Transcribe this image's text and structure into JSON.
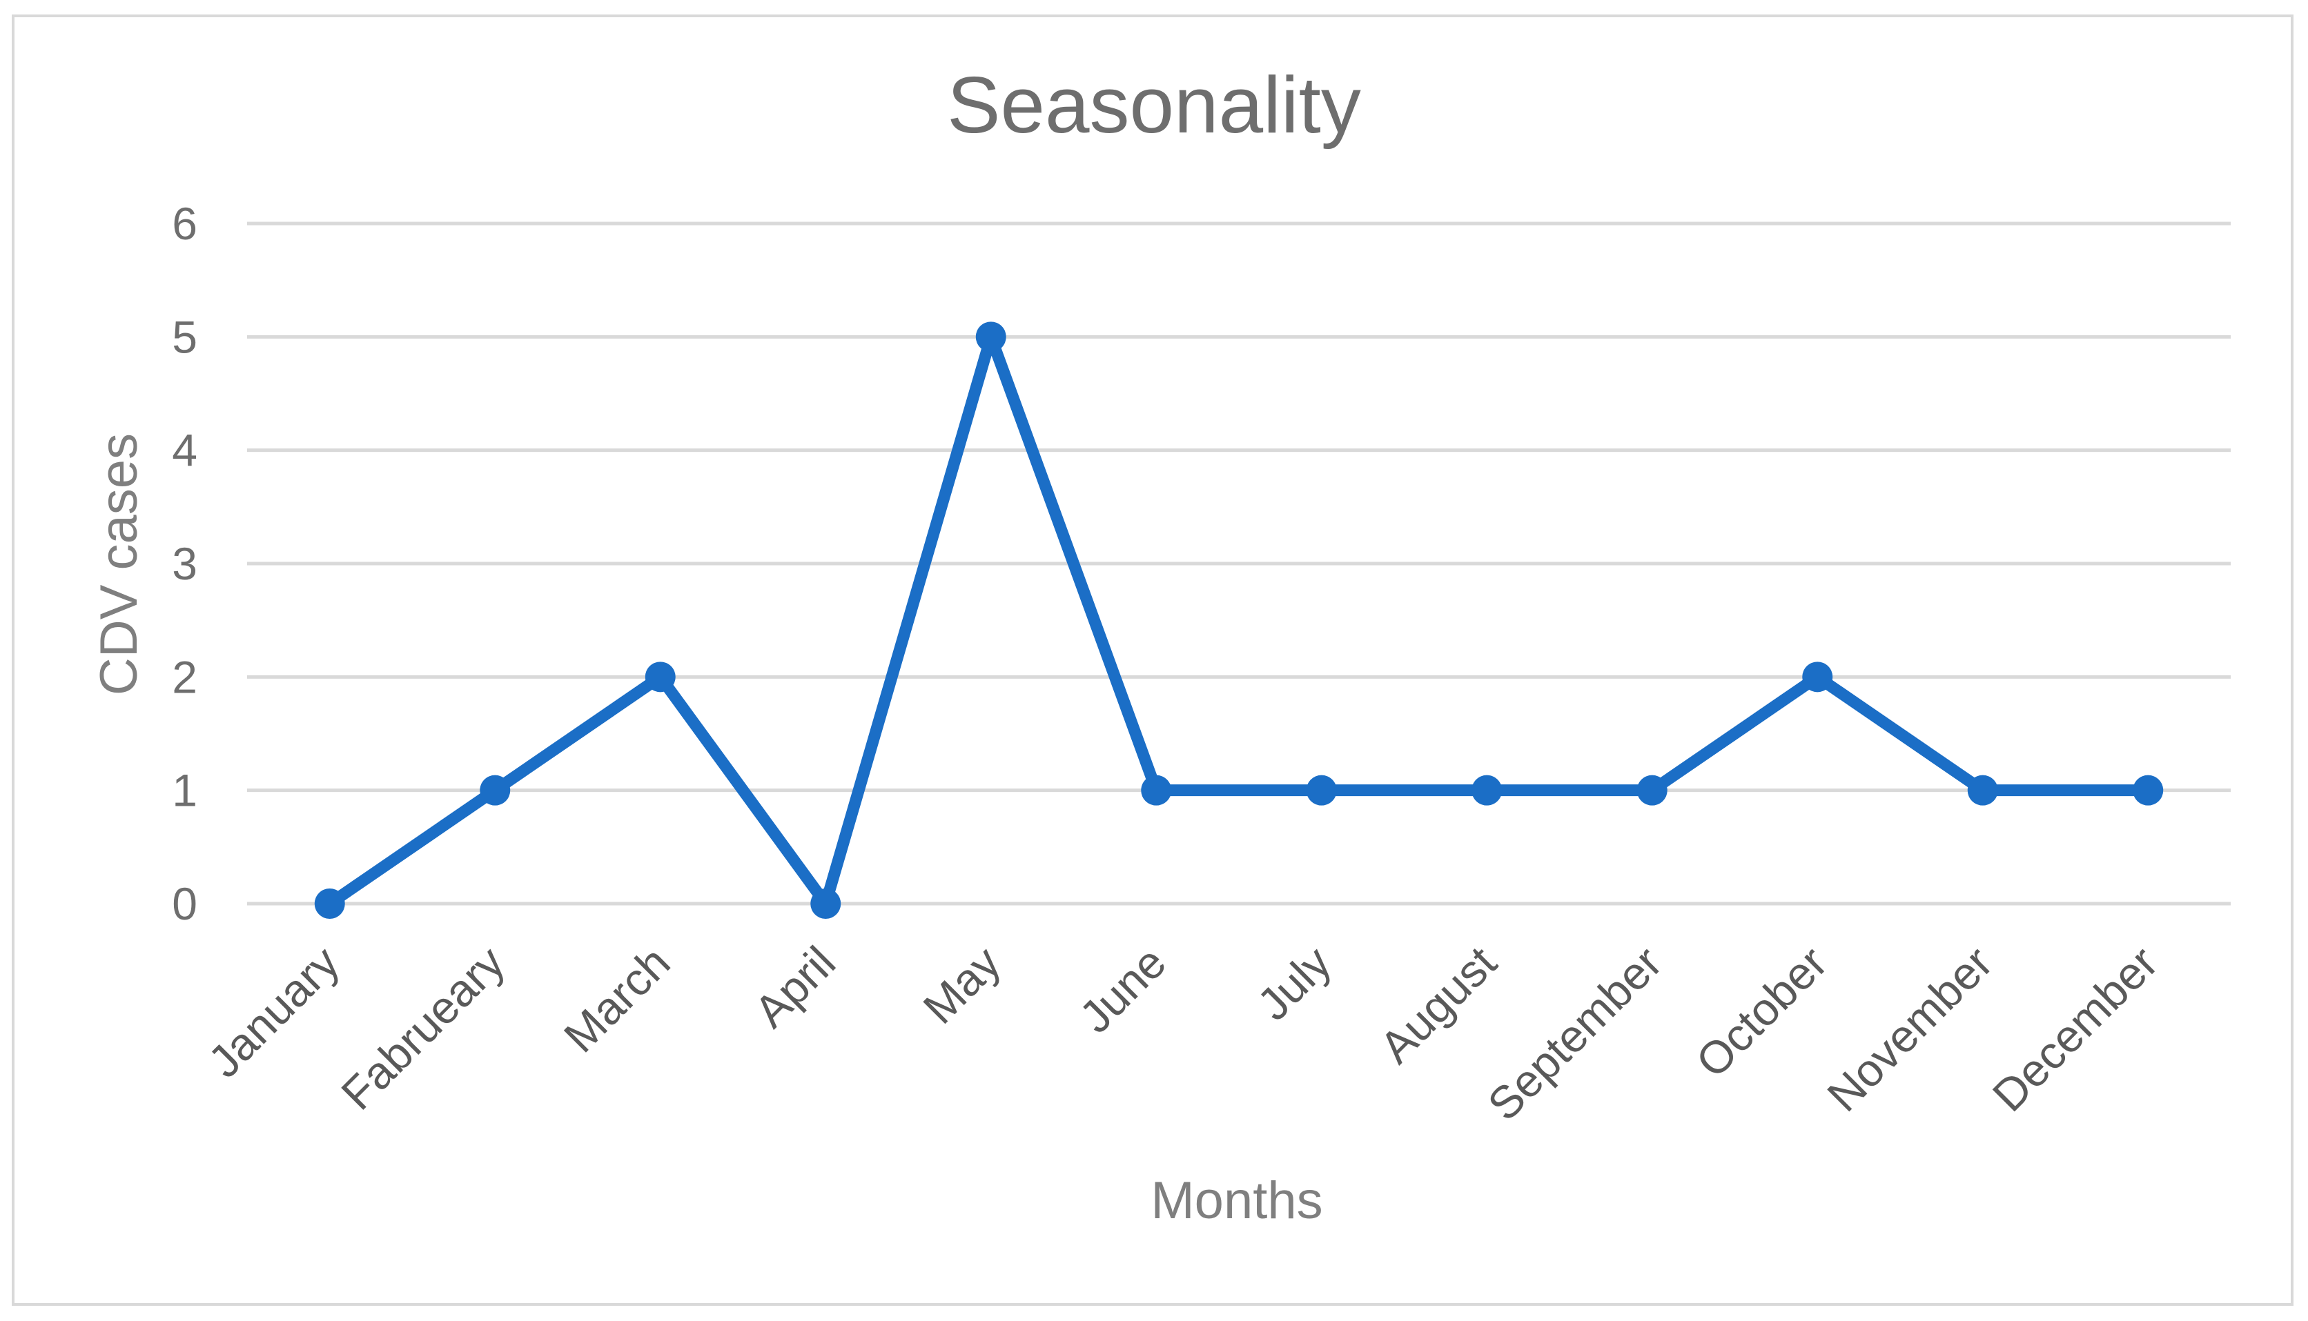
{
  "chart_data": {
    "type": "line",
    "title": "Seasonality",
    "xlabel": "Months",
    "ylabel": "CDV cases",
    "categories": [
      "January",
      "Fabrueary",
      "March",
      "April",
      "May",
      "June",
      "July",
      "August",
      "September",
      "October",
      "November",
      "December"
    ],
    "series": [
      {
        "values": [
          0,
          1,
          2,
          0,
          5,
          1,
          1,
          1,
          1,
          2,
          1,
          1
        ]
      }
    ],
    "ylim": [
      0,
      6
    ],
    "yticks": [
      "0",
      "1",
      "2",
      "3",
      "4",
      "5",
      "6"
    ],
    "grid": true,
    "legend": "none",
    "colors": {
      "line": "#1b6ec6",
      "grid": "#d9d9d9",
      "frame": "#d9d9d9"
    }
  }
}
